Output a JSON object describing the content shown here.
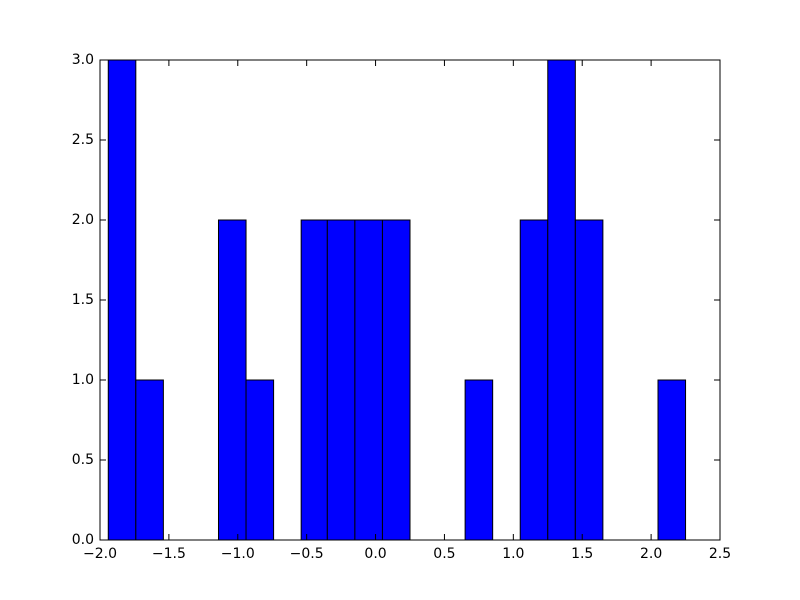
{
  "chart_data": {
    "type": "histogram",
    "bins": [
      -1.94,
      -1.74,
      -1.54,
      -1.34,
      -1.14,
      -0.94,
      -0.74,
      -0.54,
      -0.35,
      -0.15,
      0.05,
      0.25,
      0.45,
      0.65,
      0.85,
      1.05,
      1.25,
      1.45,
      1.65,
      1.85,
      2.05,
      2.25
    ],
    "values": [
      3,
      1,
      0,
      0,
      2,
      1,
      0,
      2,
      2,
      2,
      2,
      0,
      0,
      1,
      0,
      2,
      3,
      2,
      0,
      0,
      1
    ],
    "color": "#0000ff",
    "edgecolor": "#000000",
    "xlim": [
      -2.0,
      2.5
    ],
    "xticks": [
      {
        "value": -2.0,
        "label": "−2.0"
      },
      {
        "value": -1.5,
        "label": "−1.5"
      },
      {
        "value": -1.0,
        "label": "−1.0"
      },
      {
        "value": -0.5,
        "label": "−0.5"
      },
      {
        "value": 0.0,
        "label": "0.0"
      },
      {
        "value": 0.5,
        "label": "0.5"
      },
      {
        "value": 1.0,
        "label": "1.0"
      },
      {
        "value": 1.5,
        "label": "1.5"
      },
      {
        "value": 2.0,
        "label": "2.0"
      },
      {
        "value": 2.5,
        "label": "2.5"
      }
    ],
    "ylim": [
      0.0,
      3.0
    ],
    "yticks": [
      {
        "value": 0.0,
        "label": "0.0"
      },
      {
        "value": 0.5,
        "label": "0.5"
      },
      {
        "value": 1.0,
        "label": "1.0"
      },
      {
        "value": 1.5,
        "label": "1.5"
      },
      {
        "value": 2.0,
        "label": "2.0"
      },
      {
        "value": 2.5,
        "label": "2.5"
      },
      {
        "value": 3.0,
        "label": "3.0"
      }
    ],
    "grid": false
  }
}
